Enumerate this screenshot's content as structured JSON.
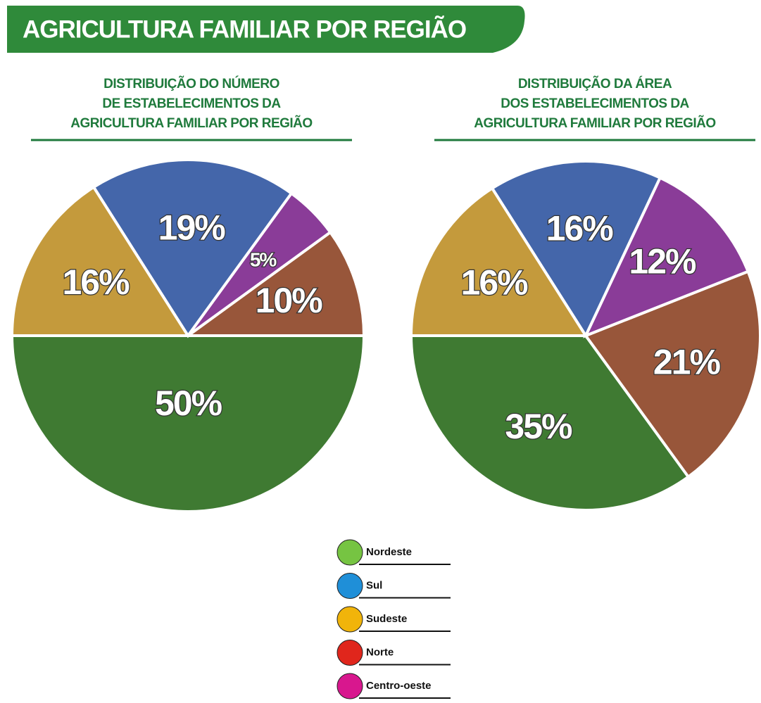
{
  "header": {
    "title": "AGRICULTURA FAMILIAR POR REGIÃO"
  },
  "chart_data": [
    {
      "type": "pie",
      "title": [
        "DISTRIBUIÇÃO DO NÚMERO",
        "DE ESTABELECIMENTOS DA",
        "AGRICULTURA FAMILIAR POR REGIÃO"
      ],
      "categories": [
        "Nordeste",
        "Sul",
        "Sudeste",
        "Norte",
        "Centro-oeste"
      ],
      "values": [
        50,
        19,
        16,
        10,
        5
      ],
      "value_labels": [
        "50%",
        "19%",
        "16%",
        "10%",
        "5%"
      ],
      "colors": [
        "#3f7a32",
        "#4466aa",
        "#c49a3c",
        "#98563a",
        "#8a3c98"
      ]
    },
    {
      "type": "pie",
      "title": [
        "DISTRIBUIÇÃO DA ÁREA",
        "DOS ESTABELECIMENTOS DA",
        "AGRICULTURA FAMILIAR POR REGIÃO"
      ],
      "categories": [
        "Nordeste",
        "Sul",
        "Sudeste",
        "Norte",
        "Centro-oeste"
      ],
      "values": [
        35,
        16,
        16,
        21,
        12
      ],
      "value_labels": [
        "35%",
        "16%",
        "16%",
        "21%",
        "12%"
      ],
      "colors": [
        "#3f7a32",
        "#4466aa",
        "#c49a3c",
        "#98563a",
        "#8a3c98"
      ]
    }
  ],
  "legend": {
    "colors": [
      "#76c442",
      "#1f8fd8",
      "#f1b40a",
      "#e0261c",
      "#d8178e"
    ]
  }
}
